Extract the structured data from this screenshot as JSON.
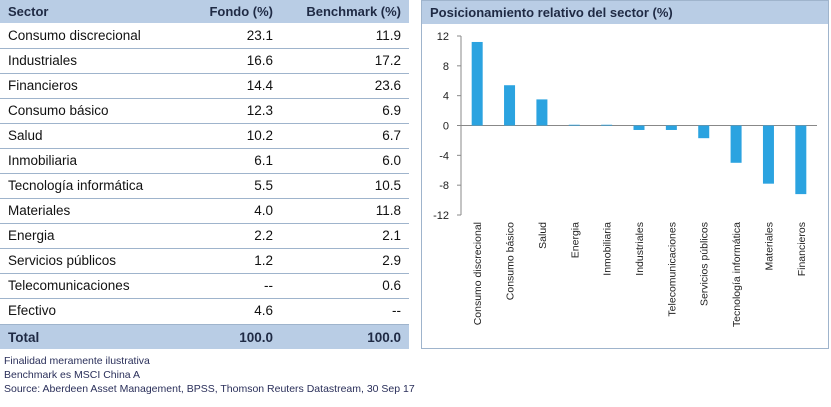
{
  "table": {
    "headers": {
      "sector": "Sector",
      "fondo": "Fondo (%)",
      "benchmark": "Benchmark (%)"
    },
    "rows": [
      {
        "sector": "Consumo discrecional",
        "fondo": "23.1",
        "benchmark": "11.9"
      },
      {
        "sector": "Industriales",
        "fondo": "16.6",
        "benchmark": "17.2"
      },
      {
        "sector": "Financieros",
        "fondo": "14.4",
        "benchmark": "23.6"
      },
      {
        "sector": "Consumo básico",
        "fondo": "12.3",
        "benchmark": "6.9"
      },
      {
        "sector": "Salud",
        "fondo": "10.2",
        "benchmark": "6.7"
      },
      {
        "sector": "Inmobiliaria",
        "fondo": "6.1",
        "benchmark": "6.0"
      },
      {
        "sector": "Tecnología informática",
        "fondo": "5.5",
        "benchmark": "10.5"
      },
      {
        "sector": "Materiales",
        "fondo": "4.0",
        "benchmark": "11.8"
      },
      {
        "sector": "Energia",
        "fondo": "2.2",
        "benchmark": "2.1"
      },
      {
        "sector": "Servicios públicos",
        "fondo": "1.2",
        "benchmark": "2.9"
      },
      {
        "sector": "Telecomunicaciones",
        "fondo": "--",
        "benchmark": "0.6"
      },
      {
        "sector": "Efectivo",
        "fondo": "4.6",
        "benchmark": "--"
      }
    ],
    "total": {
      "label": "Total",
      "fondo": "100.0",
      "benchmark": "100.0"
    }
  },
  "notes": {
    "line1": "Finalidad meramente ilustrativa",
    "line2": "Benchmark es MSCI China A",
    "line3": "Source: Aberdeen Asset Management, BPSS, Thomson Reuters Datastream, 30 Sep 17"
  },
  "colors": {
    "header_bg": "#b9cde5",
    "bar": "#2ba3e0",
    "grid": "#9fb4cc"
  },
  "chart_data": {
    "type": "bar",
    "title": "Posicionamiento relativo del sector (%)",
    "categories": [
      "Consumo discrecional",
      "Consumo básico",
      "Salud",
      "Energia",
      "Inmobiliaria",
      "Industriales",
      "Telecomunicaciones",
      "Servicios públicos",
      "Tecnología informática",
      "Materiales",
      "Financieros"
    ],
    "values": [
      11.2,
      5.4,
      3.5,
      0.1,
      0.1,
      -0.6,
      -0.6,
      -1.7,
      -5.0,
      -7.8,
      -9.2
    ],
    "ylim": [
      -12,
      12
    ],
    "yticks": [
      12,
      8,
      4,
      0,
      -4,
      -8,
      -12
    ],
    "ytick_labels": [
      "12",
      "8",
      "4",
      "0",
      "-4",
      "-8",
      "-12"
    ],
    "xlabel": "",
    "ylabel": ""
  }
}
